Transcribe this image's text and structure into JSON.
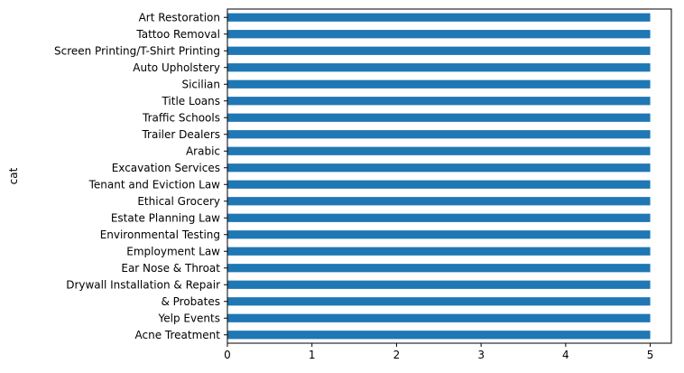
{
  "chart_data": {
    "type": "bar",
    "orientation": "horizontal",
    "categories": [
      "Art Restoration",
      "Tattoo Removal",
      "Screen Printing/T-Shirt Printing",
      "Auto Upholstery",
      "Sicilian",
      "Title Loans",
      "Traffic Schools",
      "Trailer Dealers",
      "Arabic",
      "Excavation Services",
      "Tenant and Eviction Law",
      "Ethical Grocery",
      "Estate Planning Law",
      "Environmental Testing",
      "Employment Law",
      "Ear Nose & Throat",
      "Drywall Installation & Repair",
      "& Probates",
      "Yelp Events",
      "Acne Treatment"
    ],
    "values": [
      5,
      5,
      5,
      5,
      5,
      5,
      5,
      5,
      5,
      5,
      5,
      5,
      5,
      5,
      5,
      5,
      5,
      5,
      5,
      5
    ],
    "xticks": [
      "0",
      "1",
      "2",
      "3",
      "4",
      "5"
    ],
    "xlim": [
      0,
      5.25
    ],
    "xlabel": "",
    "ylabel": "cat",
    "bar_color": "#1f77b4",
    "grid": false,
    "legend": "none"
  }
}
